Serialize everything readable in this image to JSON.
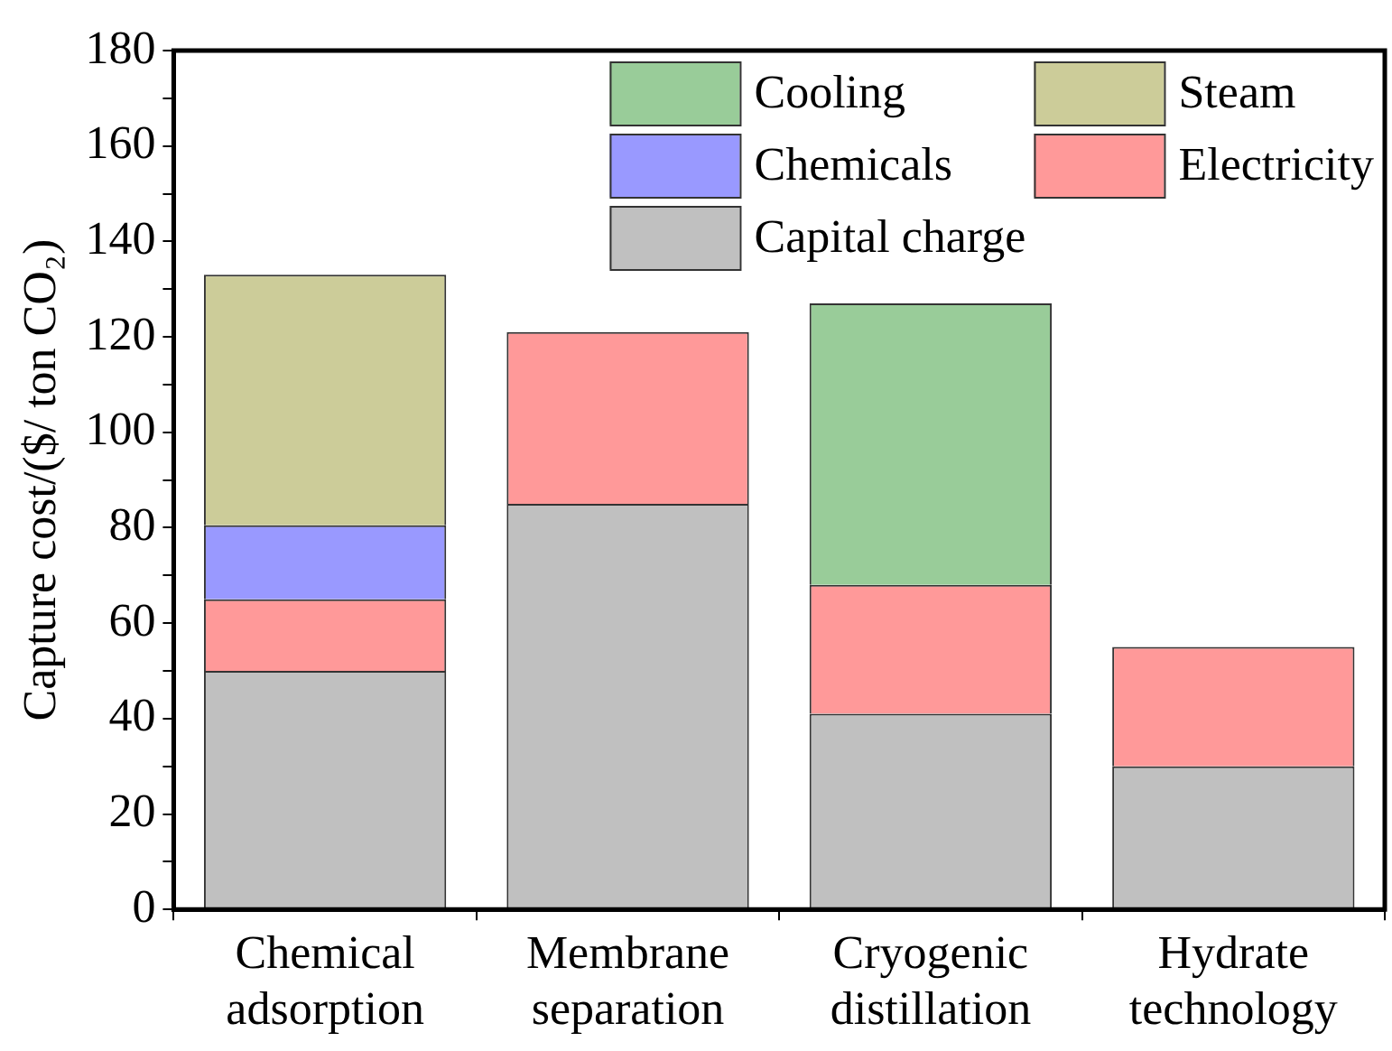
{
  "chart_data": {
    "type": "bar",
    "stacked": true,
    "ylabel": "Capture cost/($/ ton CO₂)",
    "categories": [
      "Chemical adsorption",
      "Membrane separation",
      "Cryogenic distillation",
      "Hydrate technology"
    ],
    "series": [
      {
        "name": "Capital charge",
        "color": "#c0c0c0",
        "values": [
          50,
          85,
          41,
          30
        ]
      },
      {
        "name": "Electricity",
        "color": "#ff9999",
        "values": [
          15,
          36,
          27,
          25
        ]
      },
      {
        "name": "Chemicals",
        "color": "#9999ff",
        "values": [
          15.5,
          null,
          null,
          null
        ]
      },
      {
        "name": "Steam",
        "color": "#cccc99",
        "values": [
          52.5,
          null,
          null,
          null
        ]
      },
      {
        "name": "Cooling",
        "color": "#99cc99",
        "values": [
          null,
          null,
          59,
          null
        ]
      }
    ],
    "ylim": [
      0,
      180
    ],
    "yticks": [
      0,
      {
        "value": 10,
        "label": null
      },
      20,
      {
        "value": 30,
        "label": null
      },
      40,
      {
        "value": 50,
        "label": null
      },
      60,
      {
        "value": 70,
        "label": null
      },
      80,
      {
        "value": 90,
        "label": null
      },
      100,
      {
        "value": 110,
        "label": null
      },
      120,
      {
        "value": 130,
        "label": null
      },
      140,
      {
        "value": 150,
        "label": null
      },
      160,
      {
        "value": 170,
        "label": null
      },
      180
    ],
    "grid": false,
    "legend": "top right"
  }
}
